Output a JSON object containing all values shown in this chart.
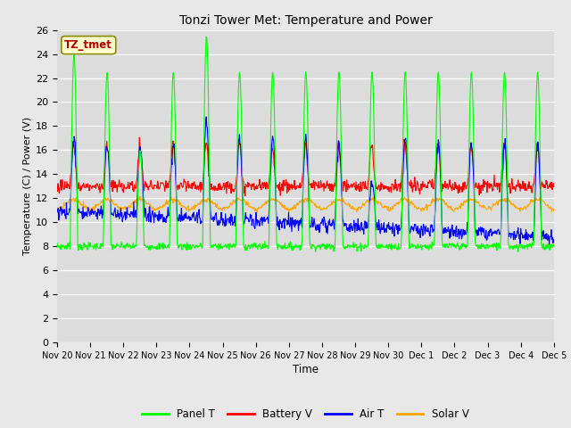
{
  "title": "Tonzi Tower Met: Temperature and Power",
  "xlabel": "Time",
  "ylabel": "Temperature (C) / Power (V)",
  "watermark": "TZ_tmet",
  "ylim": [
    0,
    26
  ],
  "yticks": [
    0,
    2,
    4,
    6,
    8,
    10,
    12,
    14,
    16,
    18,
    20,
    22,
    24,
    26
  ],
  "xtick_labels": [
    "Nov 20",
    "Nov 21",
    "Nov 22",
    "Nov 23",
    "Nov 24",
    "Nov 25",
    "Nov 26",
    "Nov 27",
    "Nov 28",
    "Nov 29",
    "Nov 30",
    "Dec 1",
    "Dec 2",
    "Dec 3",
    "Dec 4",
    "Dec 5"
  ],
  "colors": {
    "panel_t": "#00FF00",
    "battery_v": "#FF0000",
    "air_t": "#0000FF",
    "solar_v": "#FFA500"
  },
  "legend_labels": [
    "Panel T",
    "Battery V",
    "Air T",
    "Solar V"
  ],
  "bg_outer": "#E8E8E8",
  "bg_inner": "#DCDCDC",
  "grid_color": "#FFFFFF",
  "n_points": 960
}
